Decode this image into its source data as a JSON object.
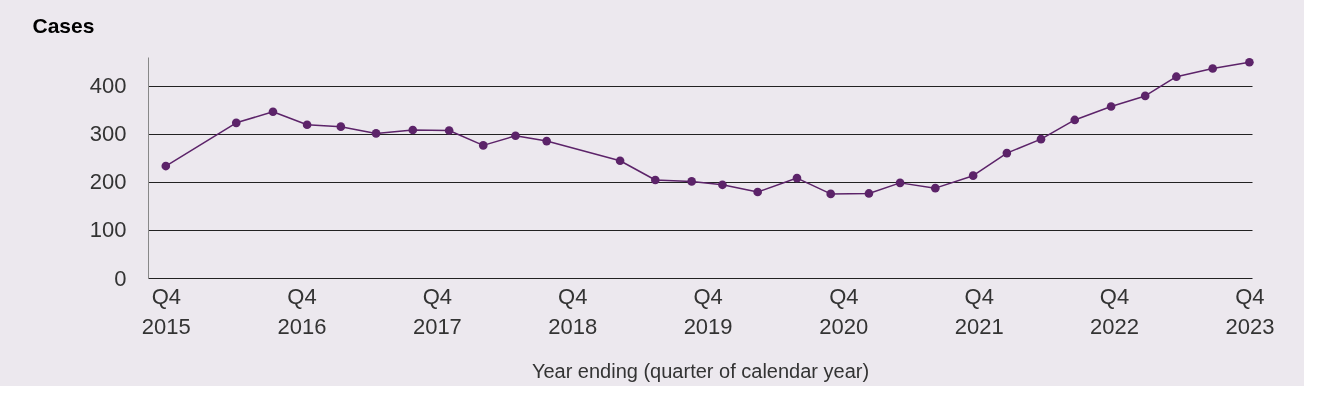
{
  "chart_data": {
    "type": "line",
    "ylabel": "Cases",
    "xlabel": "Year ending (quarter of calendar year)",
    "x": [
      "2015-12-31",
      "2016-07-08",
      "2016-10-15",
      "2017-01-15",
      "2017-04-16",
      "2017-07-20",
      "2017-10-27",
      "2018-02-02",
      "2018-05-05",
      "2018-07-31",
      "2018-10-23",
      "2019-05-09",
      "2019-08-12",
      "2019-11-18",
      "2020-02-09",
      "2020-05-14",
      "2020-08-28",
      "2020-11-27",
      "2021-03-10",
      "2021-06-02",
      "2021-09-05",
      "2021-12-16",
      "2022-03-17",
      "2022-06-17",
      "2022-09-16",
      "2022-12-23",
      "2023-03-25",
      "2023-06-17",
      "2023-09-23",
      "2023-12-31"
    ],
    "series": [
      {
        "color": "#5c2369",
        "values": [
          233,
          323,
          346,
          319,
          315,
          301,
          308,
          307,
          276,
          296,
          285,
          244,
          204,
          201,
          194,
          179,
          208,
          175,
          176,
          198,
          187,
          213,
          260,
          289,
          329,
          357,
          379,
          419,
          436,
          449
        ]
      }
    ],
    "xlim": [
      "2015-11-13",
      "2024-01-07"
    ],
    "xticks": [
      {
        "value": "2015-12-31",
        "label": "Q4\n2015"
      },
      {
        "value": "2016-12-31",
        "label": "Q4\n2016"
      },
      {
        "value": "2017-12-31",
        "label": "Q4\n2017"
      },
      {
        "value": "2018-12-31",
        "label": "Q4\n2018"
      },
      {
        "value": "2019-12-31",
        "label": "Q4\n2019"
      },
      {
        "value": "2020-12-31",
        "label": "Q4\n2020"
      },
      {
        "value": "2021-12-31",
        "label": "Q4\n2021"
      },
      {
        "value": "2022-12-31",
        "label": "Q4\n2022"
      },
      {
        "value": "2023-12-31",
        "label": "Q4\n2023"
      }
    ],
    "ylim": [
      0,
      460
    ],
    "yticks": [
      0,
      100,
      200,
      300,
      400
    ],
    "grid": "y",
    "marker": "circle",
    "line_style": "solid",
    "legend": false
  }
}
